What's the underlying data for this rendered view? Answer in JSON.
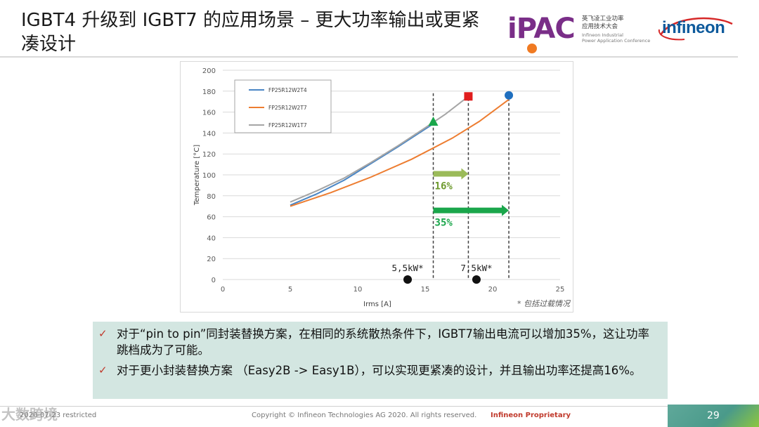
{
  "slide": {
    "title": "IGBT4 升级到 IGBT7 的应用场景 – 更大功率输出或更紧凑设计",
    "logo_ipac": {
      "mark": "iPAC",
      "cn_line1": "英飞凌工业功率",
      "cn_line2": "应用技术大会",
      "en_line1": "Infineon Industrial",
      "en_line2": "Power Application Conference"
    },
    "logo_infineon": "infineon",
    "bullets": [
      "对于“pin to pin”同封装替换方案，在相同的系统散热条件下，IGBT7输出电流可以增加35%，这让功率跳档成为了可能。",
      "对于更小封装替换方案 （Easy2B -> Easy1B），可以实现更紧凑的设计，并且输出功率还提高16%。"
    ],
    "footer": {
      "left": "2020-07-23 restricted",
      "copyright": "Copyright © Infineon Technologies AG 2020. All rights reserved.",
      "proprietary": "Infineon  Proprietary",
      "page": "29"
    },
    "watermark": "大数跨境",
    "colors": {
      "title_rule": "#d9d9d9",
      "note_bg": "#d3e6e1",
      "check": "#c0392b",
      "ipac_purple": "#7a2e88",
      "ipac_orange": "#f07a22",
      "infineon_blue": "#0e5a9c",
      "infineon_red": "#d62828"
    }
  },
  "chart_data": {
    "type": "line",
    "xlabel": "Irms [A]",
    "ylabel": "Temperature [°C]",
    "xlim": [
      0,
      25
    ],
    "ylim": [
      0,
      200
    ],
    "xticks": [
      0,
      5,
      10,
      15,
      20,
      25
    ],
    "yticks": [
      0,
      20,
      40,
      60,
      80,
      100,
      120,
      140,
      160,
      180,
      200
    ],
    "grid": "horizontal",
    "legend_position": "top-left",
    "series": [
      {
        "name": "FP25R12W2T4",
        "color": "#4a86c5",
        "x": [
          5,
          7,
          9,
          11,
          13,
          15.5
        ],
        "y": [
          71,
          82,
          95,
          111,
          127,
          148
        ]
      },
      {
        "name": "FP25R12W2T7",
        "color": "#ed7d31",
        "x": [
          5,
          8,
          11,
          14,
          17,
          19,
          21.2
        ],
        "y": [
          70,
          83,
          98,
          115,
          135,
          151,
          172
        ]
      },
      {
        "name": "FP25R12W1T7",
        "color": "#a5a5a5",
        "x": [
          5,
          7,
          9,
          11,
          13,
          15,
          16.5,
          18.2
        ],
        "y": [
          74,
          85,
          97,
          112,
          128,
          145,
          158,
          175
        ]
      }
    ],
    "end_markers": [
      {
        "shape": "triangle",
        "color": "#1aa64b",
        "x": 15.6,
        "y": 151
      },
      {
        "shape": "square",
        "color": "#e01d1d",
        "x": 18.2,
        "y": 175
      },
      {
        "shape": "circle",
        "color": "#1f6fbf",
        "x": 21.2,
        "y": 176
      }
    ],
    "vlines": [
      15.6,
      18.2,
      21.2
    ],
    "power_points": [
      {
        "label": "5,5kW*",
        "x": 13.7,
        "y": 0
      },
      {
        "label": "7,5kW*",
        "x": 18.8,
        "y": 0
      }
    ],
    "arrows": [
      {
        "label": "16%",
        "from": 15.6,
        "to": 18.2,
        "y": 101,
        "color": "#9bbb59",
        "label_color": "#6e9a2e"
      },
      {
        "label": "35%",
        "from": 15.6,
        "to": 21.2,
        "y": 66,
        "color": "#1aa64b",
        "label_color": "#1aa64b"
      }
    ],
    "footnote": "* 包括过载情况"
  }
}
